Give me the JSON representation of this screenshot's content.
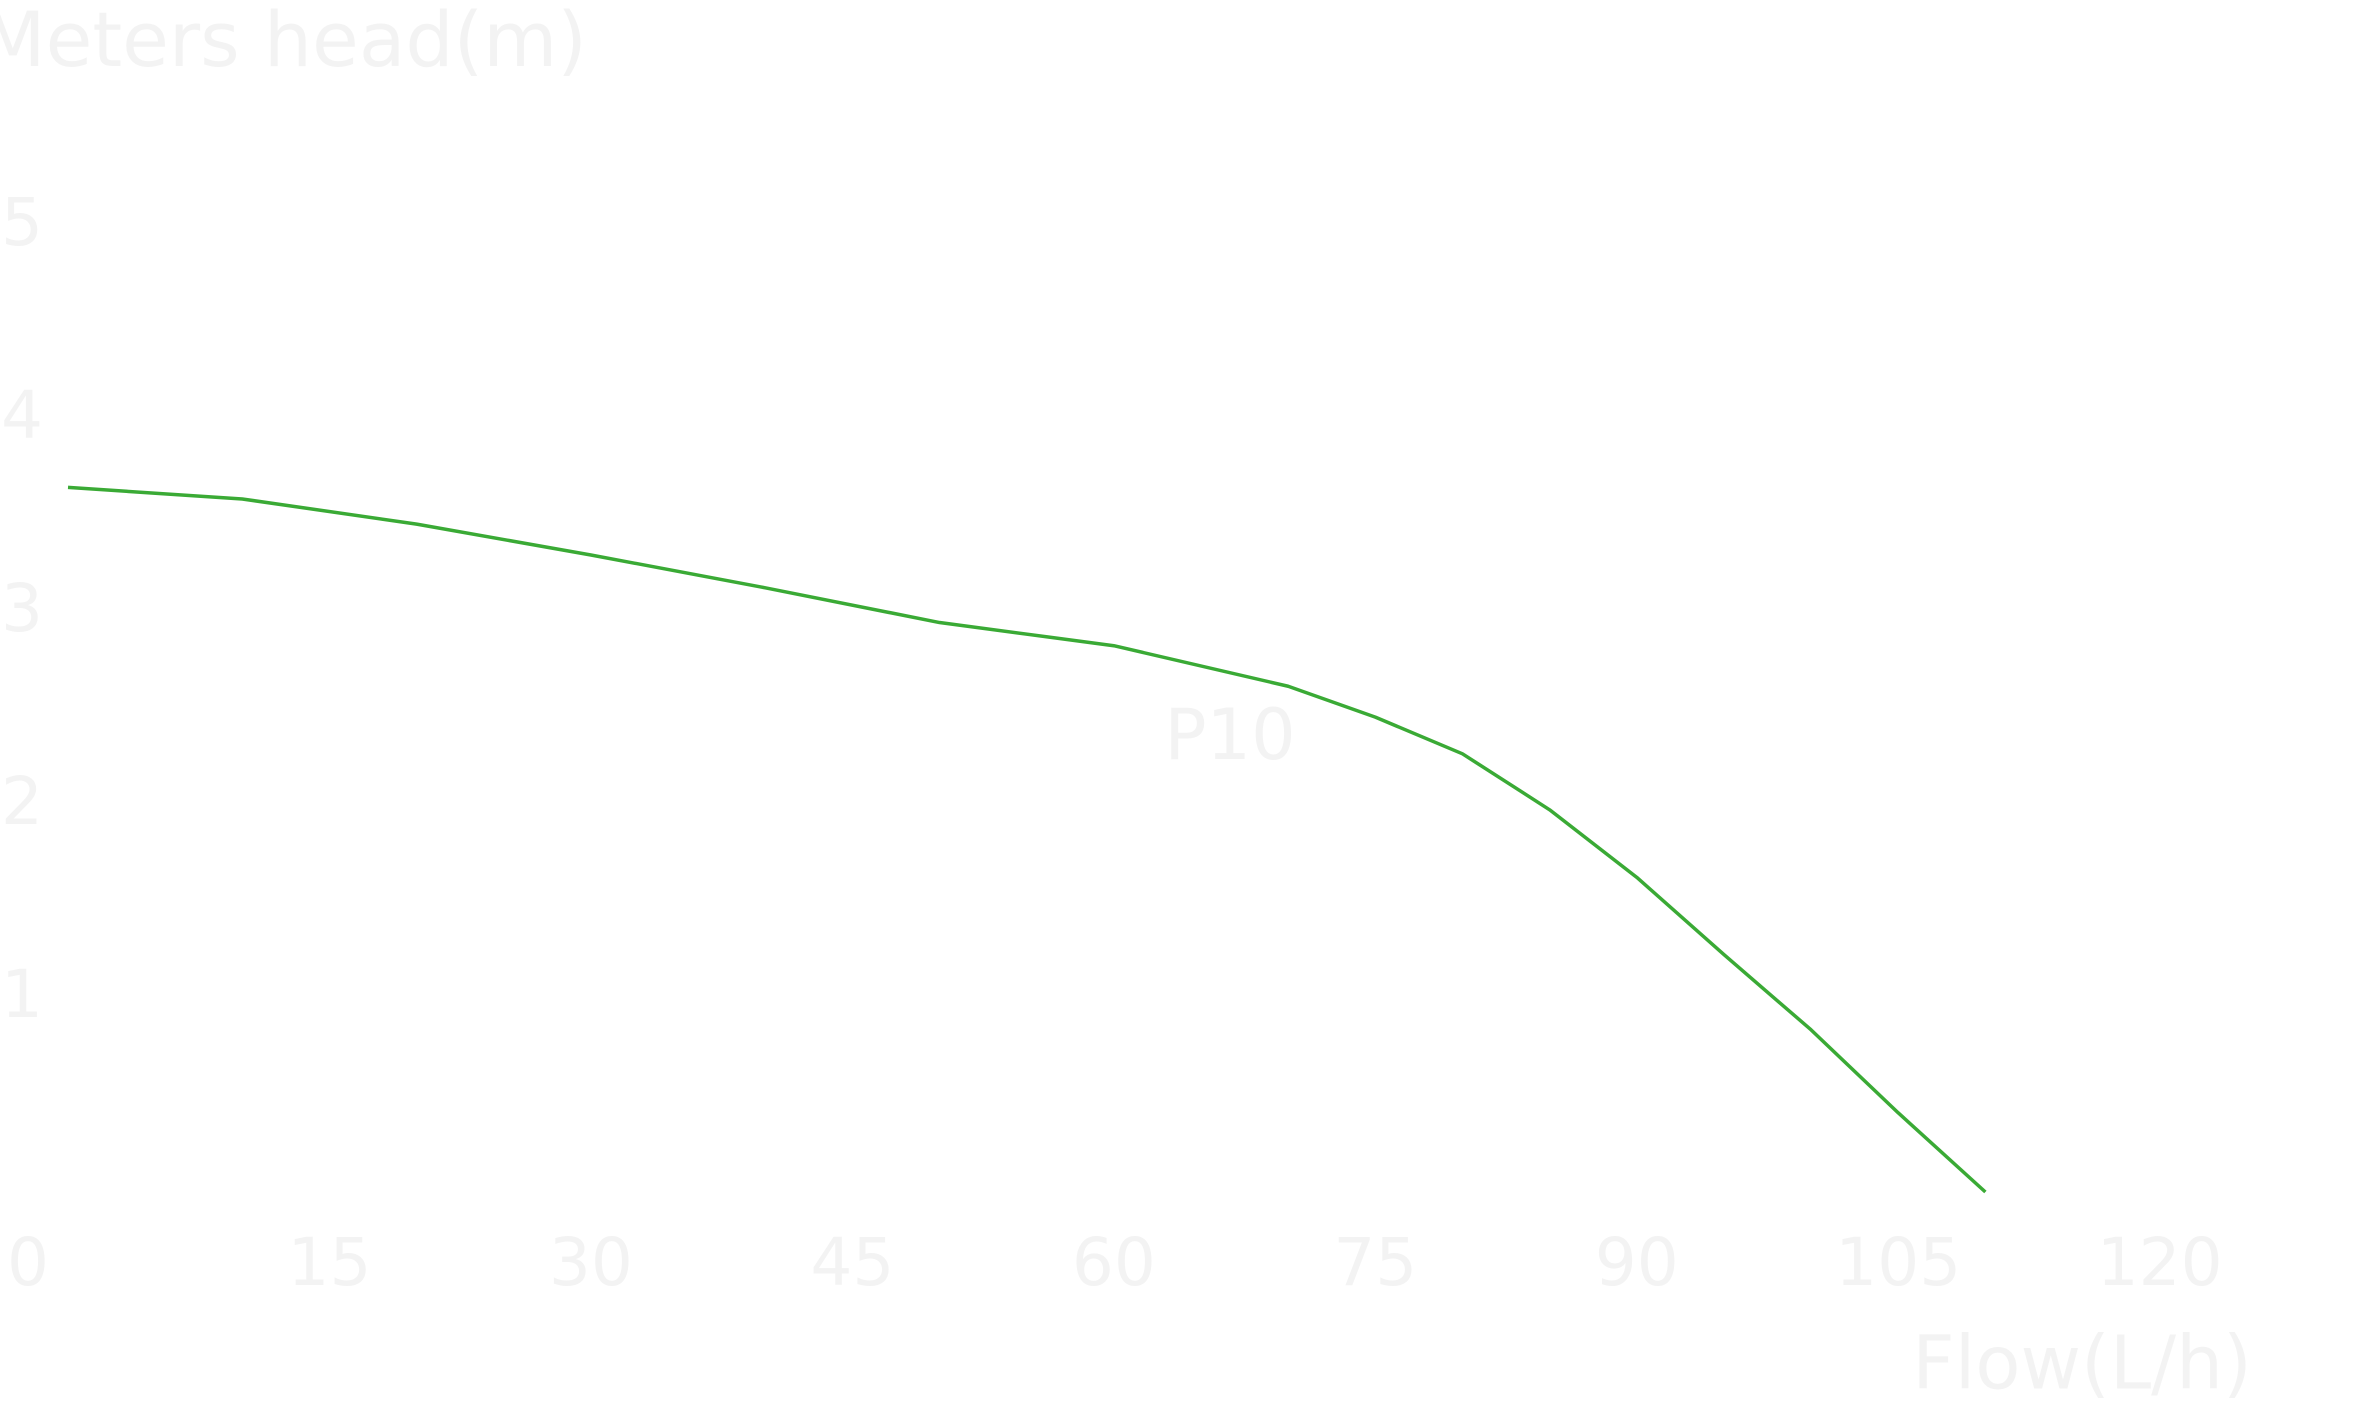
{
  "chart_data": {
    "type": "line",
    "title": "Meters head(m)",
    "x_label": "Flow(L/h)",
    "annotation": "P10",
    "x": [
      0,
      10,
      20,
      30,
      40,
      50,
      60,
      70,
      75,
      80,
      85,
      90,
      95,
      100,
      105,
      110
    ],
    "series": [
      {
        "color": "#3aaa35",
        "values": [
          3.65,
          3.59,
          3.46,
          3.3,
          3.13,
          2.95,
          2.83,
          2.62,
          2.46,
          2.27,
          1.98,
          1.63,
          1.23,
          0.84,
          0.41,
          0
        ]
      }
    ],
    "xlim": [
      0,
      130
    ],
    "xticks": [
      0,
      15,
      30,
      45,
      60,
      75,
      90,
      105,
      120
    ],
    "ylim": [
      0,
      5.6
    ],
    "yticks": [
      1,
      2,
      3,
      4,
      5
    ]
  }
}
